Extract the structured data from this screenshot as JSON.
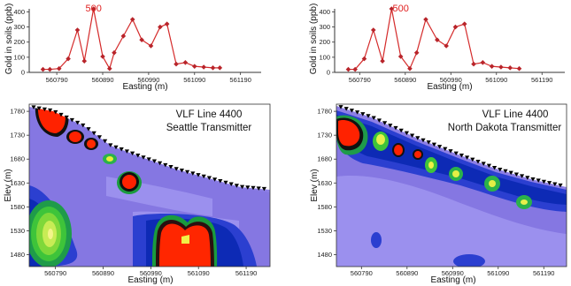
{
  "chart_data": [
    {
      "type": "line",
      "panel": "top-left",
      "ylabel": "Gold in soils (ppb)",
      "xlabel": "Easting (m)",
      "xticks": [
        560790,
        560890,
        560990,
        561090,
        561190
      ],
      "yticks": [
        0,
        100,
        200,
        300,
        400
      ],
      "xlim": [
        560730,
        561235
      ],
      "ylim": [
        0,
        420
      ],
      "annotation": "500",
      "annotation_x": 560870,
      "color": "#d42a2a",
      "x": [
        560760,
        560775,
        560795,
        560815,
        560835,
        560850,
        560870,
        560890,
        560905,
        560915,
        560935,
        560955,
        560975,
        560995,
        561015,
        561030,
        561050,
        561070,
        561090,
        561110,
        561130,
        561145
      ],
      "y": [
        20,
        20,
        25,
        90,
        280,
        75,
        420,
        105,
        25,
        130,
        240,
        350,
        215,
        175,
        300,
        320,
        55,
        65,
        40,
        35,
        30,
        30
      ]
    },
    {
      "type": "line",
      "panel": "top-right",
      "ylabel": "Gold in soils (ppb)",
      "xlabel": "Easting (m)",
      "xticks": [
        560790,
        560890,
        560990,
        561090,
        561190
      ],
      "yticks": [
        0,
        100,
        200,
        300,
        400
      ],
      "xlim": [
        560735,
        561240
      ],
      "ylim": [
        0,
        420
      ],
      "annotation": "500",
      "annotation_x": 560880,
      "color": "#d42a2a",
      "x": [
        560765,
        560780,
        560800,
        560820,
        560840,
        560860,
        560880,
        560900,
        560915,
        560935,
        560960,
        560980,
        561000,
        561020,
        561040,
        561060,
        561080,
        561100,
        561120,
        561140
      ],
      "y": [
        20,
        20,
        90,
        280,
        75,
        420,
        105,
        25,
        130,
        350,
        215,
        175,
        300,
        320,
        55,
        65,
        40,
        35,
        30,
        25
      ]
    },
    {
      "type": "heatmap",
      "panel": "bottom-left",
      "title": [
        "VLF Line 4400",
        "Seattle Transmitter"
      ],
      "xlabel": "Easting (m)",
      "ylabel": "Elev (m)",
      "xticks": [
        560790,
        560890,
        560990,
        561090,
        561190
      ],
      "yticks": [
        1480,
        1530,
        1580,
        1630,
        1680,
        1730,
        1780
      ],
      "xlim": [
        560735,
        561240
      ],
      "ylim": [
        1455,
        1795
      ]
    },
    {
      "type": "heatmap",
      "panel": "bottom-right",
      "title": [
        "VLF Line 4400",
        "North Dakota Transmitter"
      ],
      "xlabel": "Easting (m)",
      "ylabel": "Elev (m)",
      "xticks": [
        560790,
        560890,
        560990,
        561090,
        561190
      ],
      "yticks": [
        1480,
        1530,
        1580,
        1630,
        1680,
        1730,
        1780
      ],
      "xlim": [
        560735,
        561240
      ],
      "ylim": [
        1455,
        1795
      ]
    }
  ],
  "colors": {
    "line": "#d42a2a",
    "contour_low": "#8d7fe6",
    "contour_high": "#ff2200"
  }
}
